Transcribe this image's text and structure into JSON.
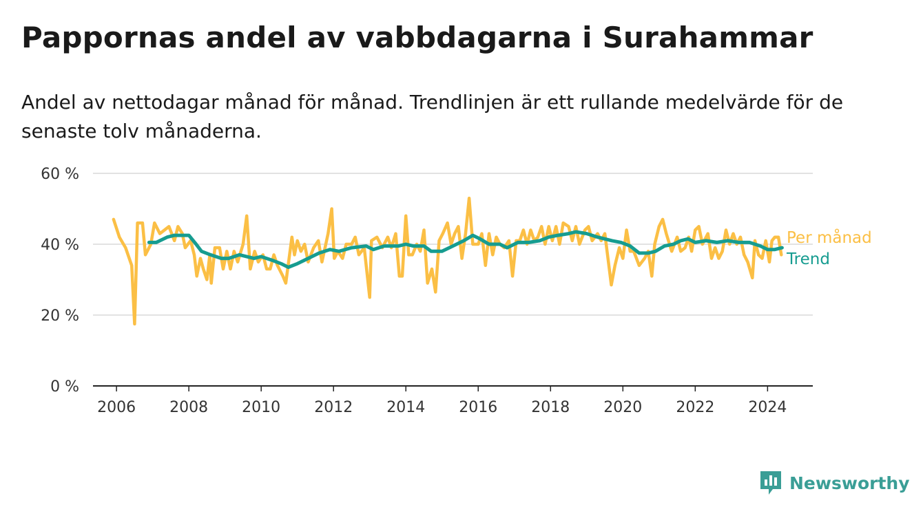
{
  "title": "Pappornas andel av vabbdagarna i Surahammar",
  "subtitle": "Andel av nettodagar månad för månad. Trendlinjen är ett rullande medelvärde för de senaste tolv månaderna.",
  "brand": {
    "name": "Newsworthy",
    "color": "#3a9e96",
    "icon": "newsworthy-logo-icon"
  },
  "chart_data": {
    "type": "line",
    "ylim": [
      0,
      60
    ],
    "xlim": [
      2005.35,
      2025.25
    ],
    "y_ticks": [
      {
        "value": 0,
        "label": "0 %"
      },
      {
        "value": 20,
        "label": "20 %"
      },
      {
        "value": 40,
        "label": "40 %"
      },
      {
        "value": 60,
        "label": "60 %"
      }
    ],
    "x_ticks": [
      {
        "value": 2006,
        "label": "2006"
      },
      {
        "value": 2008,
        "label": "2008"
      },
      {
        "value": 2010,
        "label": "2010"
      },
      {
        "value": 2012,
        "label": "2012"
      },
      {
        "value": 2014,
        "label": "2014"
      },
      {
        "value": 2016,
        "label": "2016"
      },
      {
        "value": 2018,
        "label": "2018"
      },
      {
        "value": 2020,
        "label": "2020"
      },
      {
        "value": 2022,
        "label": "2022"
      },
      {
        "value": 2024,
        "label": "2024"
      }
    ],
    "grid": true,
    "legend": "end-of-line labels",
    "series": [
      {
        "name": "Per månad",
        "color": "#fbbf45",
        "points": [
          [
            2005.92,
            47
          ],
          [
            2006.08,
            42
          ],
          [
            2006.25,
            39
          ],
          [
            2006.42,
            34
          ],
          [
            2006.5,
            17.5
          ],
          [
            2006.58,
            46
          ],
          [
            2006.72,
            46
          ],
          [
            2006.8,
            37
          ],
          [
            2006.95,
            40
          ],
          [
            2007.05,
            46
          ],
          [
            2007.2,
            43
          ],
          [
            2007.45,
            45
          ],
          [
            2007.6,
            41
          ],
          [
            2007.7,
            45
          ],
          [
            2007.82,
            43
          ],
          [
            2007.9,
            39
          ],
          [
            2008.05,
            41
          ],
          [
            2008.15,
            37
          ],
          [
            2008.22,
            31
          ],
          [
            2008.32,
            36
          ],
          [
            2008.4,
            33
          ],
          [
            2008.5,
            30
          ],
          [
            2008.58,
            37
          ],
          [
            2008.62,
            29
          ],
          [
            2008.72,
            39
          ],
          [
            2008.85,
            39
          ],
          [
            2008.95,
            33
          ],
          [
            2009.05,
            38
          ],
          [
            2009.15,
            33
          ],
          [
            2009.25,
            38
          ],
          [
            2009.35,
            35
          ],
          [
            2009.5,
            40
          ],
          [
            2009.6,
            48
          ],
          [
            2009.7,
            33
          ],
          [
            2009.82,
            38
          ],
          [
            2009.92,
            35
          ],
          [
            2010.05,
            37
          ],
          [
            2010.15,
            33
          ],
          [
            2010.25,
            33
          ],
          [
            2010.35,
            37
          ],
          [
            2010.45,
            34
          ],
          [
            2010.6,
            31
          ],
          [
            2010.68,
            29
          ],
          [
            2010.85,
            42
          ],
          [
            2010.92,
            37
          ],
          [
            2011.0,
            41
          ],
          [
            2011.1,
            38
          ],
          [
            2011.2,
            40
          ],
          [
            2011.3,
            35
          ],
          [
            2011.45,
            39
          ],
          [
            2011.58,
            41
          ],
          [
            2011.68,
            35
          ],
          [
            2011.85,
            43
          ],
          [
            2011.95,
            50
          ],
          [
            2012.02,
            36
          ],
          [
            2012.12,
            38
          ],
          [
            2012.25,
            36
          ],
          [
            2012.35,
            40
          ],
          [
            2012.5,
            40
          ],
          [
            2012.6,
            42
          ],
          [
            2012.7,
            37
          ],
          [
            2012.85,
            39
          ],
          [
            2013.0,
            25
          ],
          [
            2013.05,
            41
          ],
          [
            2013.2,
            42
          ],
          [
            2013.35,
            39
          ],
          [
            2013.5,
            42
          ],
          [
            2013.6,
            39
          ],
          [
            2013.72,
            43
          ],
          [
            2013.82,
            31
          ],
          [
            2013.9,
            31
          ],
          [
            2014.0,
            48
          ],
          [
            2014.08,
            37
          ],
          [
            2014.18,
            37
          ],
          [
            2014.3,
            40
          ],
          [
            2014.4,
            38
          ],
          [
            2014.5,
            44
          ],
          [
            2014.6,
            29
          ],
          [
            2014.72,
            33
          ],
          [
            2014.82,
            26.5
          ],
          [
            2014.92,
            41
          ],
          [
            2015.02,
            43
          ],
          [
            2015.15,
            46
          ],
          [
            2015.25,
            40
          ],
          [
            2015.35,
            43
          ],
          [
            2015.45,
            45
          ],
          [
            2015.55,
            36
          ],
          [
            2015.65,
            43
          ],
          [
            2015.75,
            53
          ],
          [
            2015.85,
            40
          ],
          [
            2016.0,
            40
          ],
          [
            2016.1,
            43
          ],
          [
            2016.2,
            34
          ],
          [
            2016.3,
            43
          ],
          [
            2016.4,
            37
          ],
          [
            2016.5,
            42
          ],
          [
            2016.6,
            40
          ],
          [
            2016.72,
            39
          ],
          [
            2016.85,
            41
          ],
          [
            2016.95,
            31
          ],
          [
            2017.05,
            41
          ],
          [
            2017.15,
            41
          ],
          [
            2017.25,
            44
          ],
          [
            2017.35,
            40
          ],
          [
            2017.45,
            44
          ],
          [
            2017.55,
            41
          ],
          [
            2017.65,
            42
          ],
          [
            2017.75,
            45
          ],
          [
            2017.85,
            40
          ],
          [
            2017.95,
            45
          ],
          [
            2018.05,
            41
          ],
          [
            2018.15,
            45
          ],
          [
            2018.25,
            40
          ],
          [
            2018.35,
            46
          ],
          [
            2018.5,
            45
          ],
          [
            2018.6,
            41
          ],
          [
            2018.7,
            45
          ],
          [
            2018.8,
            40
          ],
          [
            2018.95,
            44
          ],
          [
            2019.05,
            45
          ],
          [
            2019.15,
            41
          ],
          [
            2019.3,
            43
          ],
          [
            2019.4,
            41
          ],
          [
            2019.5,
            43
          ],
          [
            2019.6,
            35
          ],
          [
            2019.68,
            28.5
          ],
          [
            2019.78,
            34
          ],
          [
            2019.9,
            39
          ],
          [
            2020.0,
            36
          ],
          [
            2020.1,
            44
          ],
          [
            2020.2,
            38
          ],
          [
            2020.3,
            38
          ],
          [
            2020.45,
            34
          ],
          [
            2020.6,
            36
          ],
          [
            2020.7,
            38
          ],
          [
            2020.8,
            31
          ],
          [
            2020.88,
            40
          ],
          [
            2021.0,
            45
          ],
          [
            2021.1,
            47
          ],
          [
            2021.2,
            43
          ],
          [
            2021.35,
            38
          ],
          [
            2021.5,
            42
          ],
          [
            2021.6,
            38
          ],
          [
            2021.72,
            39
          ],
          [
            2021.82,
            42
          ],
          [
            2021.9,
            38
          ],
          [
            2022.0,
            44
          ],
          [
            2022.1,
            45
          ],
          [
            2022.2,
            40
          ],
          [
            2022.35,
            43
          ],
          [
            2022.45,
            36
          ],
          [
            2022.55,
            39
          ],
          [
            2022.65,
            36
          ],
          [
            2022.75,
            38
          ],
          [
            2022.85,
            44
          ],
          [
            2022.95,
            40
          ],
          [
            2023.05,
            43
          ],
          [
            2023.15,
            40
          ],
          [
            2023.25,
            42
          ],
          [
            2023.35,
            37
          ],
          [
            2023.45,
            35
          ],
          [
            2023.58,
            30.5
          ],
          [
            2023.65,
            41
          ],
          [
            2023.75,
            37
          ],
          [
            2023.85,
            36
          ],
          [
            2023.95,
            41
          ],
          [
            2024.05,
            35
          ],
          [
            2024.12,
            41
          ],
          [
            2024.2,
            42
          ],
          [
            2024.3,
            42
          ],
          [
            2024.38,
            37
          ]
        ]
      },
      {
        "name": "Trend",
        "color": "#169c90",
        "points": [
          [
            2006.9,
            40.5
          ],
          [
            2007.1,
            40.5
          ],
          [
            2007.4,
            42
          ],
          [
            2007.6,
            42.5
          ],
          [
            2007.9,
            42.5
          ],
          [
            2008.0,
            42.5
          ],
          [
            2008.2,
            40
          ],
          [
            2008.35,
            38
          ],
          [
            2008.6,
            37
          ],
          [
            2008.9,
            36
          ],
          [
            2009.1,
            36
          ],
          [
            2009.4,
            37
          ],
          [
            2009.8,
            36
          ],
          [
            2010.0,
            36.5
          ],
          [
            2010.3,
            35.5
          ],
          [
            2010.55,
            34.5
          ],
          [
            2010.75,
            33.5
          ],
          [
            2011.0,
            34.5
          ],
          [
            2011.3,
            36
          ],
          [
            2011.6,
            37.5
          ],
          [
            2011.9,
            38.5
          ],
          [
            2012.15,
            38
          ],
          [
            2012.5,
            39
          ],
          [
            2012.9,
            39.5
          ],
          [
            2013.1,
            38.5
          ],
          [
            2013.4,
            39.5
          ],
          [
            2013.8,
            39.5
          ],
          [
            2014.0,
            40
          ],
          [
            2014.2,
            39.5
          ],
          [
            2014.5,
            39.5
          ],
          [
            2014.7,
            38
          ],
          [
            2015.0,
            38
          ],
          [
            2015.3,
            39.5
          ],
          [
            2015.6,
            41
          ],
          [
            2015.85,
            42.5
          ],
          [
            2016.05,
            41.5
          ],
          [
            2016.3,
            40
          ],
          [
            2016.6,
            40
          ],
          [
            2016.8,
            39
          ],
          [
            2017.1,
            40.5
          ],
          [
            2017.4,
            40.5
          ],
          [
            2017.7,
            41
          ],
          [
            2017.95,
            42
          ],
          [
            2018.2,
            42.5
          ],
          [
            2018.5,
            43
          ],
          [
            2018.7,
            43.5
          ],
          [
            2019.0,
            43
          ],
          [
            2019.3,
            42
          ],
          [
            2019.7,
            41
          ],
          [
            2019.95,
            40.5
          ],
          [
            2020.2,
            39.5
          ],
          [
            2020.45,
            37.5
          ],
          [
            2020.7,
            37.5
          ],
          [
            2020.9,
            38
          ],
          [
            2021.15,
            39.5
          ],
          [
            2021.4,
            40
          ],
          [
            2021.6,
            41
          ],
          [
            2021.8,
            41.5
          ],
          [
            2022.0,
            40.5
          ],
          [
            2022.3,
            41
          ],
          [
            2022.6,
            40.5
          ],
          [
            2022.9,
            41
          ],
          [
            2023.2,
            40.5
          ],
          [
            2023.5,
            40.5
          ],
          [
            2023.8,
            39.5
          ],
          [
            2024.0,
            38.5
          ],
          [
            2024.2,
            38.5
          ],
          [
            2024.4,
            39
          ]
        ]
      }
    ]
  }
}
